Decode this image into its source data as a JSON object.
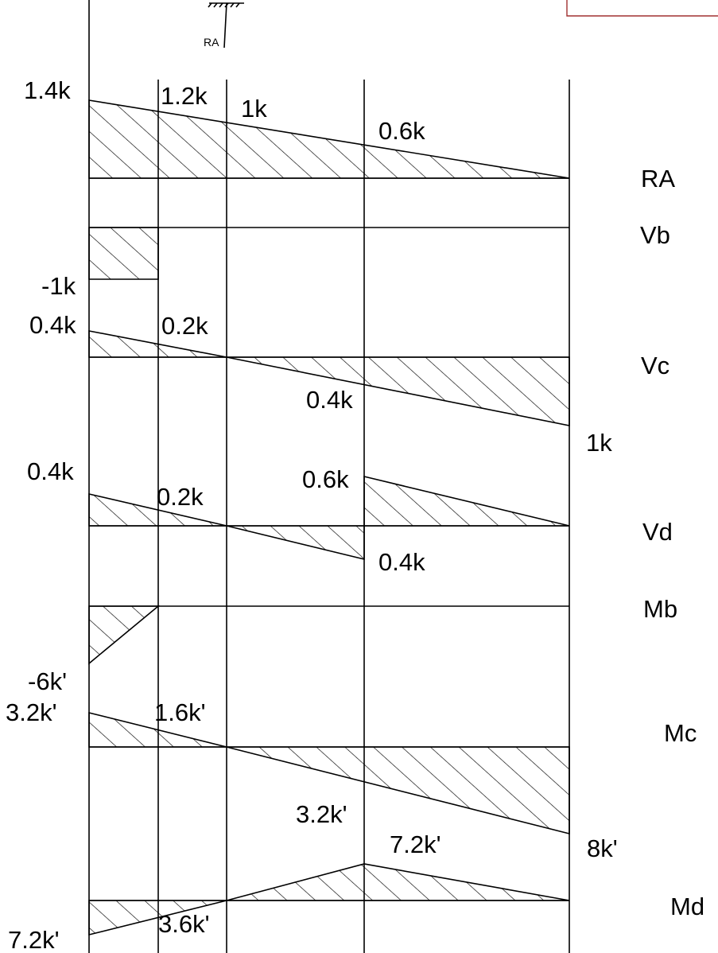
{
  "support_label": "RA",
  "diagrams": [
    {
      "id": "ra",
      "name": "RA",
      "values": [
        {
          "key": "v1",
          "text": "1.4k"
        },
        {
          "key": "v2",
          "text": "1.2k"
        },
        {
          "key": "v3",
          "text": "1k"
        },
        {
          "key": "v4",
          "text": "0.6k"
        }
      ]
    },
    {
      "id": "vb",
      "name": "Vb",
      "values": [
        {
          "key": "v1",
          "text": "-1k"
        }
      ]
    },
    {
      "id": "vc",
      "name": "Vc",
      "values": [
        {
          "key": "v1",
          "text": "0.4k"
        },
        {
          "key": "v2",
          "text": "0.2k"
        },
        {
          "key": "v3",
          "text": "0.4k"
        },
        {
          "key": "v4",
          "text": "1k"
        }
      ]
    },
    {
      "id": "vd",
      "name": "Vd",
      "values": [
        {
          "key": "v1",
          "text": "0.4k"
        },
        {
          "key": "v2",
          "text": "0.2k"
        },
        {
          "key": "v3",
          "text": "0.6k"
        },
        {
          "key": "v4",
          "text": "0.4k"
        }
      ]
    },
    {
      "id": "mb",
      "name": "Mb",
      "values": [
        {
          "key": "v1",
          "text": "-6k'"
        }
      ]
    },
    {
      "id": "mc",
      "name": "Mc",
      "values": [
        {
          "key": "v1",
          "text": "3.2k'"
        },
        {
          "key": "v2",
          "text": "1.6k'"
        },
        {
          "key": "v3",
          "text": "3.2k'"
        },
        {
          "key": "v4",
          "text": "8k'"
        }
      ]
    },
    {
      "id": "md",
      "name": "Md",
      "values": [
        {
          "key": "v1",
          "text": "7.2k'"
        },
        {
          "key": "v2",
          "text": "3.6k'"
        },
        {
          "key": "v3",
          "text": "7.2k'"
        }
      ]
    }
  ]
}
